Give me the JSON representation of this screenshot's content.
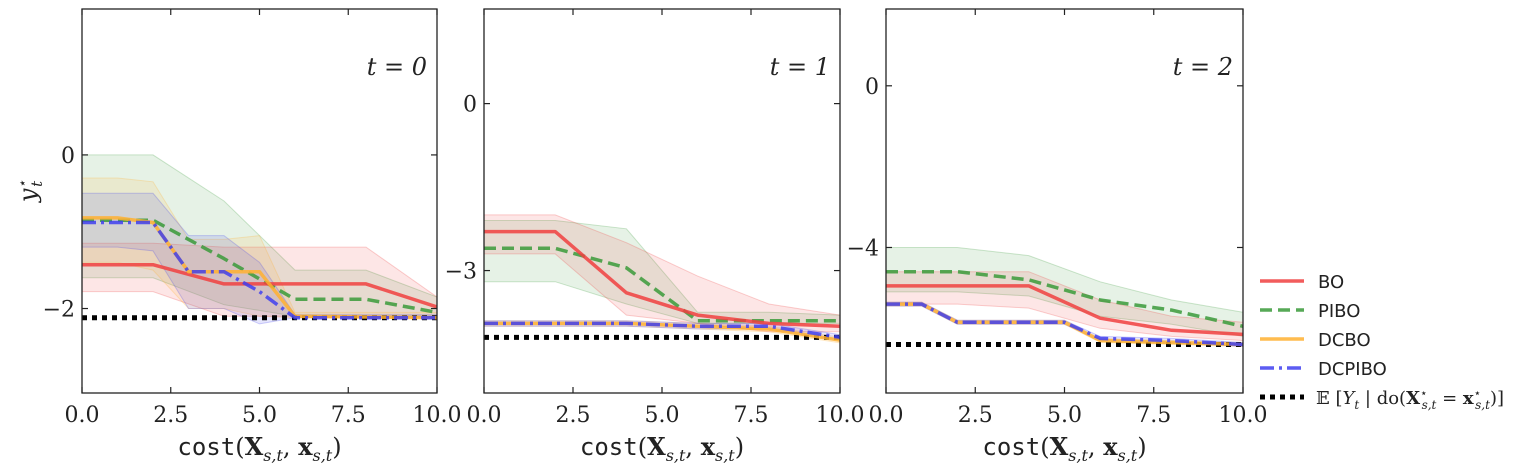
{
  "chart_data": [
    {
      "type": "line",
      "annotation": "t = 0",
      "xlabel": "cost(X_{s,t}, x_{s,t})",
      "ylabel": "y_t^*",
      "xlim": [
        0,
        10
      ],
      "ylim": [
        -3.1,
        1.9
      ],
      "xticks": [
        "0.0",
        "2.5",
        "5.0",
        "7.5",
        "10.0"
      ],
      "yticks": [
        {
          "value": 0,
          "label": "0"
        },
        {
          "value": -2,
          "label": "−2"
        }
      ],
      "reference": -2.12,
      "series": [
        {
          "name": "BO",
          "x": [
            0,
            2,
            4,
            6,
            8,
            10
          ],
          "y": [
            -1.43,
            -1.43,
            -1.68,
            -1.68,
            -1.68,
            -1.98
          ],
          "lower": [
            -1.78,
            -1.78,
            -2.1,
            -2.1,
            -2.1,
            -2.1
          ],
          "upper": [
            -1.15,
            -1.15,
            -1.2,
            -1.2,
            -1.2,
            -1.85
          ]
        },
        {
          "name": "PIBO",
          "x": [
            0,
            2,
            4,
            6,
            8,
            10
          ],
          "y": [
            -0.85,
            -0.85,
            -1.35,
            -1.88,
            -1.88,
            -2.05
          ],
          "lower": [
            -1.6,
            -1.6,
            -1.95,
            -2.1,
            -2.1,
            -2.1
          ],
          "upper": [
            0.0,
            0.0,
            -0.6,
            -1.5,
            -1.5,
            -1.85
          ]
        },
        {
          "name": "DCBO",
          "x": [
            0,
            1,
            2,
            3,
            4,
            5,
            6,
            10
          ],
          "y": [
            -0.82,
            -0.82,
            -0.88,
            -1.52,
            -1.52,
            -1.52,
            -2.1,
            -2.12
          ],
          "lower": [
            -1.4,
            -1.4,
            -1.5,
            -2.0,
            -2.0,
            -2.1,
            -2.12,
            -2.12
          ],
          "upper": [
            -0.3,
            -0.3,
            -0.35,
            -1.1,
            -1.1,
            -1.05,
            -2.05,
            -2.05
          ]
        },
        {
          "name": "DCPIBO",
          "x": [
            0,
            1,
            2,
            3,
            4,
            5,
            6,
            10
          ],
          "y": [
            -0.88,
            -0.88,
            -0.88,
            -1.52,
            -1.52,
            -1.78,
            -2.12,
            -2.12
          ],
          "lower": [
            -1.2,
            -1.2,
            -1.25,
            -2.0,
            -2.0,
            -2.2,
            -2.12,
            -2.12
          ],
          "upper": [
            -0.5,
            -0.5,
            -0.5,
            -1.05,
            -1.05,
            -1.4,
            -2.08,
            -2.08
          ]
        }
      ]
    },
    {
      "type": "line",
      "annotation": "t = 1",
      "xlabel": "cost(X_{s,t}, x_{s,t})",
      "ylabel": "",
      "xlim": [
        0,
        10
      ],
      "ylim": [
        -5.2,
        1.7
      ],
      "xticks": [
        "0.0",
        "2.5",
        "5.0",
        "7.5",
        "10.0"
      ],
      "yticks": [
        {
          "value": 0,
          "label": "0"
        },
        {
          "value": -3,
          "label": "−3"
        }
      ],
      "reference": -4.2,
      "series": [
        {
          "name": "BO",
          "x": [
            0,
            2,
            4,
            6,
            8,
            10
          ],
          "y": [
            -2.3,
            -2.3,
            -3.4,
            -3.8,
            -3.95,
            -4.0
          ],
          "lower": [
            -2.7,
            -2.7,
            -3.8,
            -3.95,
            -4.1,
            -4.1
          ],
          "upper": [
            -2.0,
            -2.0,
            -2.5,
            -3.1,
            -3.6,
            -3.8
          ]
        },
        {
          "name": "PIBO",
          "x": [
            0,
            2,
            4,
            6,
            8,
            10
          ],
          "y": [
            -2.6,
            -2.6,
            -2.95,
            -3.9,
            -3.9,
            -3.9
          ],
          "lower": [
            -3.2,
            -3.2,
            -3.6,
            -3.95,
            -3.95,
            -3.95
          ],
          "upper": [
            -2.1,
            -2.1,
            -2.25,
            -3.75,
            -3.75,
            -3.8
          ]
        },
        {
          "name": "DCBO",
          "x": [
            0,
            2,
            4,
            6,
            8,
            10
          ],
          "y": [
            -3.95,
            -3.95,
            -3.95,
            -4.0,
            -4.05,
            -4.25
          ],
          "lower": [
            -4.0,
            -4.0,
            -4.0,
            -4.05,
            -4.1,
            -4.3
          ],
          "upper": [
            -3.9,
            -3.9,
            -3.9,
            -3.95,
            -4.0,
            -4.2
          ]
        },
        {
          "name": "DCPIBO",
          "x": [
            0,
            2,
            4,
            6,
            8,
            10
          ],
          "y": [
            -3.95,
            -3.95,
            -3.95,
            -4.0,
            -4.0,
            -4.2
          ],
          "lower": [
            -4.0,
            -4.0,
            -4.0,
            -4.05,
            -4.05,
            -4.25
          ],
          "upper": [
            -3.9,
            -3.9,
            -3.9,
            -3.95,
            -3.95,
            -4.15
          ]
        }
      ]
    },
    {
      "type": "line",
      "annotation": "t = 2",
      "xlabel": "cost(X_{s,t}, x_{s,t})",
      "ylabel": "",
      "xlim": [
        0,
        10
      ],
      "ylim": [
        -7.6,
        1.9
      ],
      "xticks": [
        "0.0",
        "2.5",
        "5.0",
        "7.5",
        "10.0"
      ],
      "yticks": [
        {
          "value": 0,
          "label": "0"
        },
        {
          "value": -4,
          "label": "−4"
        }
      ],
      "reference": -6.4,
      "series": [
        {
          "name": "BO",
          "x": [
            0,
            2,
            4,
            6,
            8,
            10
          ],
          "y": [
            -4.95,
            -4.95,
            -4.95,
            -5.75,
            -6.05,
            -6.15
          ],
          "lower": [
            -5.4,
            -5.4,
            -5.5,
            -6.0,
            -6.2,
            -6.3
          ],
          "upper": [
            -4.6,
            -4.6,
            -4.6,
            -5.3,
            -5.7,
            -5.85
          ]
        },
        {
          "name": "PIBO",
          "x": [
            0,
            2,
            4,
            6,
            8,
            10
          ],
          "y": [
            -4.6,
            -4.6,
            -4.8,
            -5.3,
            -5.55,
            -5.95
          ],
          "lower": [
            -5.1,
            -5.1,
            -5.2,
            -5.7,
            -5.9,
            -6.2
          ],
          "upper": [
            -4.0,
            -4.0,
            -4.2,
            -4.85,
            -5.3,
            -5.6
          ]
        },
        {
          "name": "DCBO",
          "x": [
            0,
            1,
            2,
            3,
            4,
            5,
            6,
            8,
            10
          ],
          "y": [
            -5.4,
            -5.4,
            -5.85,
            -5.85,
            -5.85,
            -5.85,
            -6.3,
            -6.35,
            -6.4
          ],
          "lower": [
            -5.45,
            -5.45,
            -5.9,
            -5.9,
            -5.9,
            -5.9,
            -6.35,
            -6.4,
            -6.45
          ],
          "upper": [
            -5.35,
            -5.35,
            -5.8,
            -5.8,
            -5.8,
            -5.8,
            -6.25,
            -6.3,
            -6.35
          ]
        },
        {
          "name": "DCPIBO",
          "x": [
            0,
            1,
            2,
            3,
            4,
            5,
            6,
            8,
            10
          ],
          "y": [
            -5.4,
            -5.4,
            -5.85,
            -5.85,
            -5.85,
            -5.85,
            -6.25,
            -6.3,
            -6.4
          ],
          "lower": [
            -5.45,
            -5.45,
            -5.9,
            -5.9,
            -5.9,
            -5.9,
            -6.3,
            -6.35,
            -6.45
          ],
          "upper": [
            -5.35,
            -5.35,
            -5.8,
            -5.8,
            -5.8,
            -5.8,
            -6.2,
            -6.25,
            -6.35
          ]
        }
      ]
    }
  ],
  "legend": {
    "placement": "right",
    "entries": [
      {
        "label": "BO",
        "color": "#f04040",
        "style": "solid"
      },
      {
        "label": "PIBO",
        "color": "#3a9a3a",
        "style": "dashed"
      },
      {
        "label": "DCBO",
        "color": "#ffb030",
        "style": "solid"
      },
      {
        "label": "DCPIBO",
        "color": "#4040f0",
        "style": "dashdot"
      },
      {
        "label": "E[Y_t | do(X*_{s,t} = x*_{s,t})]",
        "color": "#000000",
        "style": "dotted"
      }
    ]
  },
  "colors": {
    "BO": "#f04040",
    "PIBO": "#3a9a3a",
    "DCBO": "#ffb030",
    "DCPIBO": "#4040f0",
    "reference": "#000000"
  }
}
